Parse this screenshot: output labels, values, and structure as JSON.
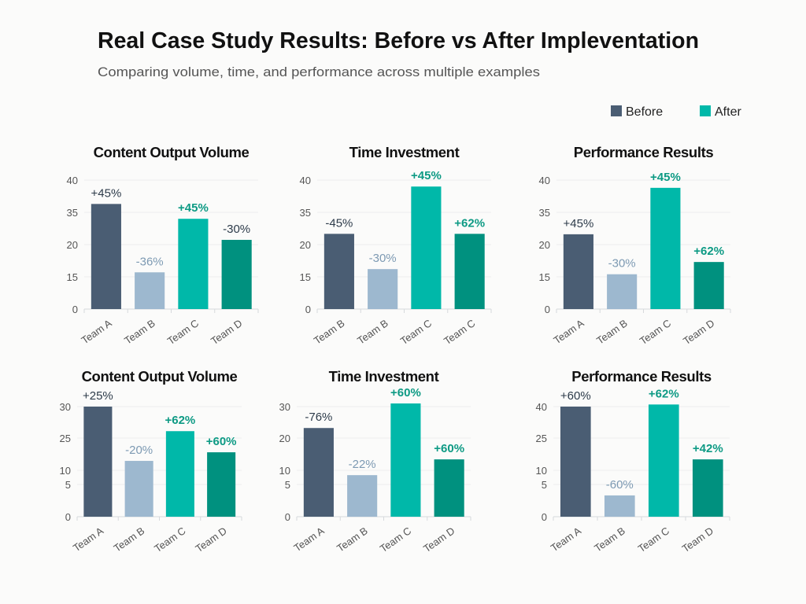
{
  "title": "Real Case Study Results: Before vs After Impleventation",
  "subtitle": "Comparing volume, time, and performance across multiple examples",
  "legend": [
    {
      "label": "Before",
      "color": "#4a5d73"
    },
    {
      "label": "After",
      "color": "#00b8a9"
    }
  ],
  "colors": {
    "bars": [
      "#4a5d73",
      "#9db8cf",
      "#00b8a9",
      "#00917f"
    ],
    "labels": [
      "#2d3b4a",
      "#7d9ab3",
      "#0d9a84",
      "#0d9a84"
    ],
    "label_dark_d": "#2d3b4a"
  },
  "chart_data": [
    {
      "type": "bar",
      "title": "Content Output Volume",
      "categories": [
        "Team A",
        "Team B",
        "Team C",
        "Team D"
      ],
      "values": [
        36.3,
        15.7,
        32,
        22.2
      ],
      "data_labels": [
        "+45%",
        "-36%",
        "+45%",
        "-30%"
      ],
      "y_ticks": [
        "0",
        "15",
        "20",
        "35",
        "40"
      ],
      "ylim": [
        0,
        40
      ],
      "grid": true
    },
    {
      "type": "bar",
      "title": "Time Investment",
      "categories": [
        "Team B",
        "Team B",
        "Team C",
        "Team C"
      ],
      "values": [
        25,
        16.2,
        39,
        25
      ],
      "data_labels": [
        "-45%",
        "-30%",
        "+45%",
        "+62%"
      ],
      "y_ticks": [
        "0",
        "15",
        "20",
        "35",
        "40"
      ],
      "ylim": [
        0,
        40
      ],
      "grid": true
    },
    {
      "type": "bar",
      "title": "Performance Results",
      "categories": [
        "Team A",
        "Team B",
        "Team C",
        "Team D"
      ],
      "values": [
        24.8,
        15.4,
        38.8,
        17.3
      ],
      "data_labels": [
        "+45%",
        "-30%",
        "+45%",
        "+62%"
      ],
      "y_ticks": [
        "0",
        "15",
        "20",
        "35",
        "40"
      ],
      "ylim": [
        0,
        40
      ],
      "grid": true
    },
    {
      "type": "bar",
      "title": "Content Output Volume",
      "categories": [
        "Team A",
        "Team B",
        "Team C",
        "Team D"
      ],
      "values": [
        30,
        14.4,
        26.1,
        18.4
      ],
      "data_labels": [
        "+25%",
        "-20%",
        "+62%",
        "+60%"
      ],
      "y_ticks": [
        "0",
        "5",
        "10",
        "25",
        "30"
      ],
      "ylim": [
        0,
        30
      ],
      "grid": true
    },
    {
      "type": "bar",
      "title": "Time Investment",
      "categories": [
        "Team A",
        "Team B",
        "Team C",
        "Team D"
      ],
      "values": [
        23.2,
        8.3,
        31,
        13.4
      ],
      "data_labels": [
        "-76%",
        "-22%",
        "+60%",
        "+60%"
      ],
      "y_ticks": [
        "0",
        "5",
        "10",
        "20",
        "30"
      ],
      "ylim": [
        0,
        30
      ],
      "grid": true
    },
    {
      "type": "bar",
      "title": "Performance Results",
      "categories": [
        "Team A",
        "Team B",
        "Team C",
        "Team D"
      ],
      "values": [
        40,
        3.3,
        41,
        15.1
      ],
      "data_labels": [
        "+60%",
        "-60%",
        "+62%",
        "+42%"
      ],
      "y_ticks": [
        "0",
        "5",
        "10",
        "25",
        "40"
      ],
      "ylim": [
        0,
        40
      ],
      "grid": true
    }
  ]
}
